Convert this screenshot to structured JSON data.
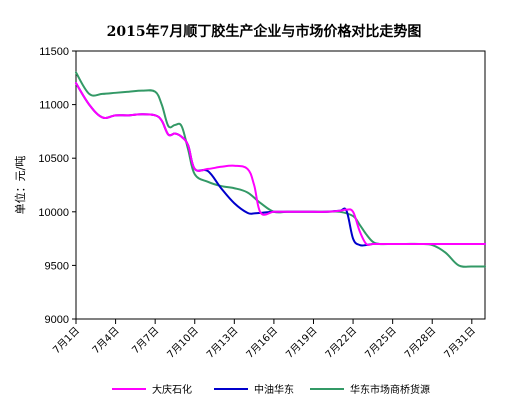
{
  "chart_data": {
    "type": "line",
    "title": "2015年7月顺丁胶生产企业与市场价格对比走势图",
    "ylabel": "单位：元/吨",
    "xlabel": "",
    "ylim": [
      9000,
      11500
    ],
    "yticks": [
      9000,
      9500,
      10000,
      10500,
      11000,
      11500
    ],
    "xlim": [
      1,
      32
    ],
    "xticks": [
      1,
      4,
      7,
      10,
      13,
      16,
      19,
      22,
      25,
      28,
      31
    ],
    "xtick_labels": [
      "7月1日",
      "7月4日",
      "7月7日",
      "7月10日",
      "7月13日",
      "7月16日",
      "7月19日",
      "7月22日",
      "7月25日",
      "7月28日",
      "7月31日"
    ],
    "grid": false,
    "legend_position": "bottom",
    "series": [
      {
        "name": "大庆石化",
        "color": "#ff00ff",
        "x": [
          1,
          2,
          3,
          4,
          5,
          6,
          7,
          7.5,
          8,
          8.5,
          9,
          9.5,
          10,
          11,
          12,
          13,
          14,
          14.5,
          15,
          16,
          17,
          18,
          19,
          20,
          21,
          21.5,
          22,
          22.5,
          23,
          23.5,
          24,
          25,
          26,
          27,
          28,
          29,
          30,
          31,
          32
        ],
        "values": [
          11200,
          11000,
          10880,
          10900,
          10900,
          10910,
          10900,
          10850,
          10720,
          10730,
          10700,
          10620,
          10400,
          10400,
          10420,
          10430,
          10400,
          10250,
          9990,
          10000,
          10000,
          10000,
          10000,
          10000,
          10010,
          10020,
          10000,
          9820,
          9700,
          9700,
          9700,
          9700,
          9700,
          9700,
          9700,
          9700,
          9700,
          9700,
          9700
        ]
      },
      {
        "name": "中油华东",
        "color": "#0000cc",
        "x": [
          1,
          2,
          3,
          4,
          5,
          6,
          7,
          7.5,
          8,
          8.5,
          9,
          9.5,
          10,
          11,
          12,
          13,
          14,
          14.5,
          15,
          16,
          17,
          18,
          19,
          20,
          21,
          21.5,
          22,
          22.5,
          23,
          23.5,
          24,
          25,
          26,
          27,
          28,
          29,
          30,
          31,
          32
        ],
        "values": [
          11200,
          11000,
          10880,
          10900,
          10900,
          10910,
          10900,
          10850,
          10720,
          10730,
          10700,
          10620,
          10400,
          10380,
          10220,
          10080,
          9990,
          9985,
          9990,
          10000,
          10000,
          10000,
          10000,
          10000,
          10010,
          10010,
          9750,
          9690,
          9690,
          9700,
          9700,
          9700,
          9700,
          9700,
          9700,
          9700,
          9700,
          9700,
          9700
        ]
      },
      {
        "name": "华东市场商桥货源",
        "color": "#339966",
        "x": [
          1,
          2,
          3,
          4,
          5,
          6,
          7,
          7.5,
          8,
          8.5,
          9,
          9.5,
          10,
          11,
          12,
          13,
          14,
          15,
          16,
          17,
          18,
          19,
          20,
          21,
          22,
          22.5,
          23,
          23.5,
          24,
          25,
          26,
          27,
          28,
          29,
          30,
          31,
          32
        ],
        "values": [
          11300,
          11100,
          11100,
          11110,
          11120,
          11130,
          11120,
          11000,
          10800,
          10810,
          10800,
          10580,
          10350,
          10280,
          10240,
          10220,
          10180,
          10080,
          10000,
          10000,
          10000,
          10000,
          10000,
          10000,
          9960,
          9880,
          9790,
          9720,
          9700,
          9700,
          9700,
          9700,
          9690,
          9620,
          9500,
          9490,
          9490
        ]
      }
    ]
  }
}
